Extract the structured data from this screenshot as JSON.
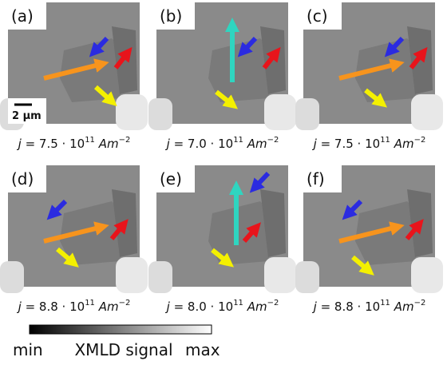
{
  "panels": [
    {
      "label": "(a)",
      "scale_bar": "2 µm",
      "caption": {
        "symbol": "j",
        "value": " = 7.5 · 10",
        "exponent": "11",
        "unit": " Am",
        "unit_exponent": "−2"
      }
    },
    {
      "label": "(b)",
      "caption": {
        "symbol": "j",
        "value": " = 7.0 · 10",
        "exponent": "11",
        "unit": " Am",
        "unit_exponent": "−2"
      }
    },
    {
      "label": "(c)",
      "caption": {
        "symbol": "j",
        "value": " = 7.5 · 10",
        "exponent": "11",
        "unit": " Am",
        "unit_exponent": "−2"
      }
    },
    {
      "label": "(d)",
      "caption": {
        "symbol": "j",
        "value": " = 8.8 · 10",
        "exponent": "11",
        "unit": " Am",
        "unit_exponent": "−2"
      }
    },
    {
      "label": "(e)",
      "caption": {
        "symbol": "j",
        "value": " = 8.0 · 10",
        "exponent": "11",
        "unit": " Am",
        "unit_exponent": "−2"
      }
    },
    {
      "label": "(f)",
      "caption": {
        "symbol": "j",
        "value": " = 8.8 · 10",
        "exponent": "11",
        "unit": " Am",
        "unit_exponent": "−2"
      }
    }
  ],
  "colorbar": {
    "min": "min",
    "title": "XMLD signal",
    "max": "max"
  }
}
